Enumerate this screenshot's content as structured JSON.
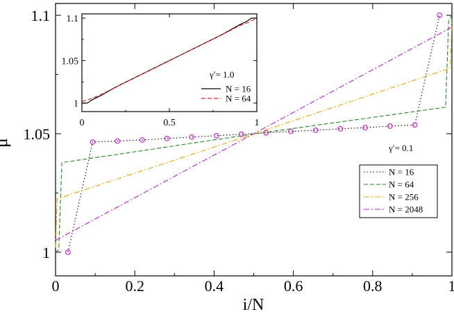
{
  "chart_data": [
    {
      "type": "line",
      "xlabel": "i/N",
      "ylabel": "μ",
      "xlim": [
        0,
        1
      ],
      "ylim": [
        0.99,
        1.105
      ],
      "x_ticks": [
        0,
        0.2,
        0.4,
        0.6,
        0.8,
        1
      ],
      "x_tick_labels": [
        "0",
        "0.2",
        "0.4",
        "0.6",
        "0.8",
        "1"
      ],
      "y_ticks": [
        1,
        1.05,
        1.1
      ],
      "y_tick_labels": [
        "1",
        "1.05",
        "1.1"
      ],
      "legend_title": "γ′= 0.1",
      "legend_position": "right",
      "series": [
        {
          "name": "N = 16",
          "color": "#000000",
          "dash": "dotted",
          "marker": "circle",
          "marker_color": "#d61ed6",
          "x": [
            0.03125,
            0.09375,
            0.15625,
            0.21875,
            0.28125,
            0.34375,
            0.40625,
            0.46875,
            0.53125,
            0.59375,
            0.65625,
            0.71875,
            0.78125,
            0.84375,
            0.90625,
            0.96875
          ],
          "y": [
            1.0,
            1.0465,
            1.0469,
            1.0474,
            1.048,
            1.0486,
            1.0492,
            1.0498,
            1.0504,
            1.051,
            1.0515,
            1.0521,
            1.0526,
            1.0532,
            1.0537,
            1.1
          ]
        },
        {
          "name": "N = 64",
          "color": "#1a8c1a",
          "dash": "dashed",
          "x": [
            0.0,
            0.008,
            0.016,
            0.5,
            0.984,
            0.992,
            1.0
          ],
          "y": [
            1.0,
            1.001,
            1.0378,
            1.0499,
            1.0612,
            1.098,
            1.1
          ]
        },
        {
          "name": "N = 256",
          "color": "#f0a500",
          "dash": "dashdot",
          "x": [
            0.0,
            0.004,
            0.5,
            0.996,
            1.0
          ],
          "y": [
            1.002,
            1.0225,
            1.0499,
            1.0777,
            1.098
          ]
        },
        {
          "name": "N = 2048",
          "color": "#b820d4",
          "dash": "dashdot",
          "x": [
            0.0,
            1.0
          ],
          "y": [
            1.005,
            1.095
          ]
        }
      ]
    },
    {
      "type": "line",
      "xlabel": "",
      "ylabel": "",
      "xlim": [
        0,
        1
      ],
      "ylim": [
        0.99,
        1.105
      ],
      "x_ticks": [
        0,
        0.5,
        1
      ],
      "x_tick_labels": [
        "0",
        "0.5",
        "1"
      ],
      "y_ticks": [
        1,
        1.05,
        1.1
      ],
      "y_tick_labels": [
        "1",
        "1.05",
        "1.1"
      ],
      "legend_title": "γ′= 1.0",
      "legend_position": "bottom-right",
      "series": [
        {
          "name": "N = 16",
          "color": "#000000",
          "dash": "solid",
          "x": [
            0.0,
            0.03,
            0.06,
            0.1,
            0.2,
            0.5,
            0.8,
            0.9,
            0.94,
            0.97,
            1.0
          ],
          "y": [
            1.0,
            1.0,
            1.004,
            1.008,
            1.0195,
            1.05,
            1.0805,
            1.092,
            1.096,
            1.1,
            1.1
          ]
        },
        {
          "name": "N = 64",
          "color": "#e02020",
          "dash": "dashed",
          "x": [
            0.0,
            0.02,
            0.05,
            0.1,
            0.2,
            0.5,
            0.8,
            0.9,
            0.95,
            0.98,
            1.0
          ],
          "y": [
            1.002,
            1.003,
            1.005,
            1.009,
            1.0195,
            1.05,
            1.0805,
            1.091,
            1.095,
            1.098,
            1.099
          ]
        }
      ]
    }
  ]
}
